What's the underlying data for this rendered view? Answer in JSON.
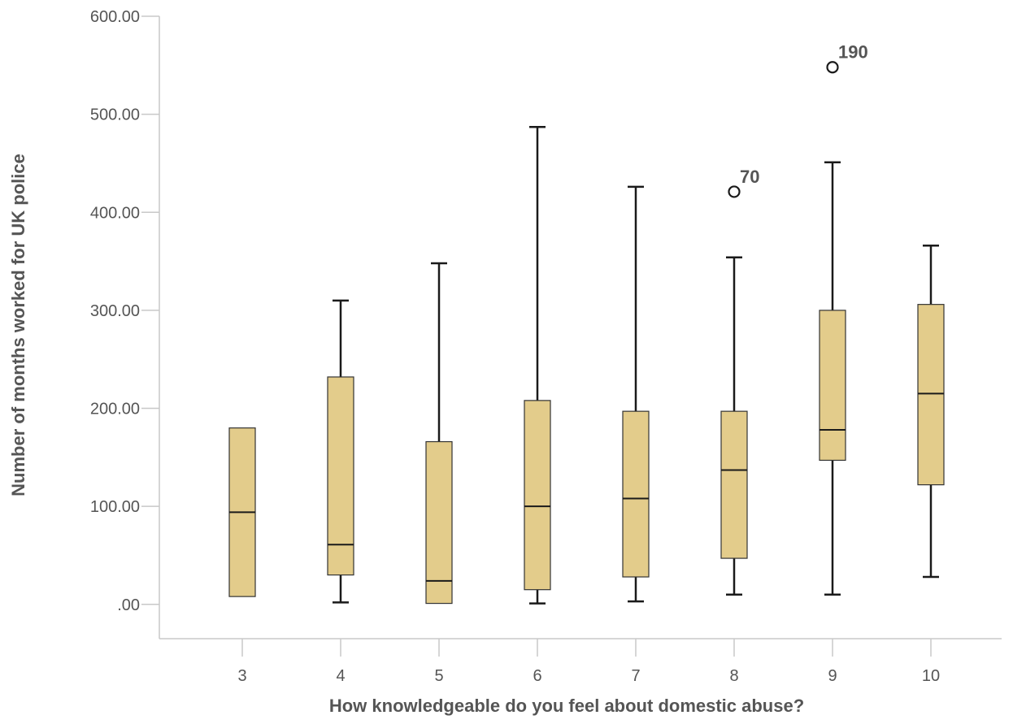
{
  "chart_data": {
    "type": "boxplot",
    "xlabel": "How knowledgeable do you feel about domestic abuse?",
    "ylabel": "Number of months worked for UK police",
    "ylim": [
      -35,
      600
    ],
    "y_ticks": [
      {
        "value": 0,
        "label": ".00"
      },
      {
        "value": 100,
        "label": "100.00"
      },
      {
        "value": 200,
        "label": "200.00"
      },
      {
        "value": 300,
        "label": "300.00"
      },
      {
        "value": 400,
        "label": "400.00"
      },
      {
        "value": 500,
        "label": "500.00"
      },
      {
        "value": 600,
        "label": "600.00"
      }
    ],
    "categories": [
      "3",
      "4",
      "5",
      "6",
      "7",
      "8",
      "9",
      "10"
    ],
    "boxes": [
      {
        "category": "3",
        "whisker_low": null,
        "q1": 8,
        "median": 94,
        "q3": 180,
        "whisker_high": null,
        "outliers": []
      },
      {
        "category": "4",
        "whisker_low": 2,
        "q1": 30,
        "median": 61,
        "q3": 232,
        "whisker_high": 310,
        "outliers": []
      },
      {
        "category": "5",
        "whisker_low": null,
        "q1": 1,
        "median": 24,
        "q3": 166,
        "whisker_high": 348,
        "outliers": []
      },
      {
        "category": "6",
        "whisker_low": 1,
        "q1": 15,
        "median": 100,
        "q3": 208,
        "whisker_high": 487,
        "outliers": []
      },
      {
        "category": "7",
        "whisker_low": 3,
        "q1": 28,
        "median": 108,
        "q3": 197,
        "whisker_high": 426,
        "outliers": []
      },
      {
        "category": "8",
        "whisker_low": 10,
        "q1": 47,
        "median": 137,
        "q3": 197,
        "whisker_high": 354,
        "outliers": [
          {
            "value": 421,
            "label": "70"
          }
        ]
      },
      {
        "category": "9",
        "whisker_low": 10,
        "q1": 147,
        "median": 178,
        "q3": 300,
        "whisker_high": 451,
        "outliers": [
          {
            "value": 548,
            "label": "190"
          }
        ]
      },
      {
        "category": "10",
        "whisker_low": 28,
        "q1": 122,
        "median": 215,
        "q3": 306,
        "whisker_high": 366,
        "outliers": []
      }
    ],
    "colors": {
      "box_fill": "#e3cc8b",
      "box_stroke": "#333333",
      "whisker": "#1a1a1a",
      "axis": "#c8c8c8",
      "text": "#555555"
    },
    "grid": false,
    "legend": "none"
  }
}
